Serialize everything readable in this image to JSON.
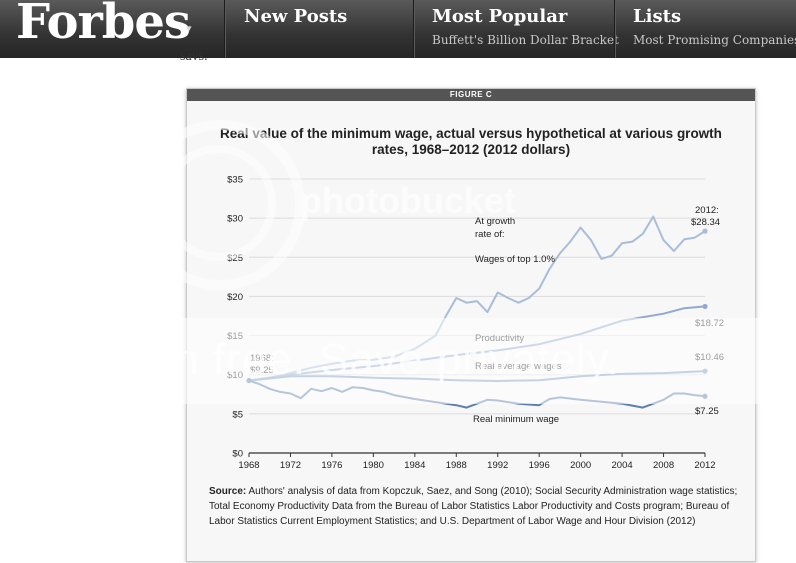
{
  "header": {
    "logo": "Forbes",
    "logo_arrow": "▾",
    "nav": [
      {
        "title": "New Posts",
        "subtitle": ""
      },
      {
        "title": "Most Popular",
        "subtitle": "Buffett's Billion Dollar Bracket"
      },
      {
        "title": "Lists",
        "subtitle": "Most Promising Companies"
      }
    ]
  },
  "article": {
    "cut_text": "says."
  },
  "watermark": {
    "brand": "photobucket",
    "band_text": "Join free. Save privately."
  },
  "figure": {
    "label": "FIGURE C",
    "title": "Real value of the minimum wage, actual versus hypothetical at various growth rates, 1968–2012 (2012 dollars)",
    "source_label": "Source:",
    "source_text": " Authors' analysis of data from Kopczuk, Saez, and Song (2010); Social Security Administration wage statistics; Total Economy Productivity Data from the Bureau of Labor Statistics Labor Productivity and Costs program; Bureau of Labor Statistics Current Employment Statistics; and U.S. Department of Labor Wage and Hour Division (2012)"
  },
  "chart_data": {
    "type": "line",
    "title": "Real value of the minimum wage, actual versus hypothetical at various growth rates, 1968–2012 (2012 dollars)",
    "xlabel": "",
    "ylabel": "",
    "xlim": [
      1968,
      2012
    ],
    "ylim": [
      0,
      35
    ],
    "x_ticks": [
      "1968",
      "1972",
      "1976",
      "1980",
      "1984",
      "1988",
      "1992",
      "1996",
      "2000",
      "2004",
      "2008",
      "2012"
    ],
    "y_ticks": [
      "$0",
      "$5",
      "$10",
      "$15",
      "$20",
      "$25",
      "$30",
      "$35"
    ],
    "grid": true,
    "legend": "none",
    "annotations": [
      "At growth",
      "rate of:",
      "1968:",
      "$9.25",
      "2012:",
      "$28.34",
      "$18.72",
      "$10.46",
      "$7.25"
    ],
    "series": [
      {
        "name": "Wages of top 1.0%",
        "color": "#a9bdd9",
        "x": [
          1968,
          1970,
          1972,
          1974,
          1976,
          1978,
          1980,
          1982,
          1984,
          1986,
          1987,
          1988,
          1989,
          1990,
          1991,
          1992,
          1993,
          1994,
          1995,
          1996,
          1997,
          1998,
          1999,
          2000,
          2001,
          2002,
          2003,
          2004,
          2005,
          2006,
          2007,
          2008,
          2009,
          2010,
          2011,
          2012
        ],
        "values": [
          9.25,
          9.6,
          10.2,
          10.9,
          11.4,
          11.8,
          11.9,
          12.3,
          13.3,
          15.0,
          17.5,
          19.8,
          19.2,
          19.4,
          18.0,
          20.5,
          19.8,
          19.2,
          19.8,
          21.0,
          23.5,
          25.5,
          27.0,
          28.8,
          27.2,
          24.8,
          25.2,
          26.8,
          27.0,
          28.0,
          30.2,
          27.2,
          25.8,
          27.3,
          27.5,
          28.34
        ]
      },
      {
        "name": "Productivity",
        "color": "#90a9cc",
        "x": [
          1968,
          1972,
          1976,
          1980,
          1984,
          1988,
          1992,
          1996,
          2000,
          2004,
          2008,
          2010,
          2012
        ],
        "values": [
          9.25,
          10.0,
          10.6,
          11.1,
          11.8,
          12.5,
          13.1,
          13.9,
          15.2,
          16.9,
          17.8,
          18.5,
          18.72
        ]
      },
      {
        "name": "Real average wages",
        "color": "#7f9cc4",
        "x": [
          1968,
          1972,
          1976,
          1980,
          1984,
          1988,
          1992,
          1996,
          2000,
          2004,
          2008,
          2012
        ],
        "values": [
          9.25,
          9.8,
          9.8,
          9.6,
          9.5,
          9.3,
          9.2,
          9.3,
          9.8,
          10.1,
          10.2,
          10.46
        ]
      },
      {
        "name": "Real minimum wage",
        "color": "#5e7fad",
        "x": [
          1968,
          1969,
          1970,
          1971,
          1972,
          1973,
          1974,
          1975,
          1976,
          1977,
          1978,
          1979,
          1980,
          1981,
          1982,
          1984,
          1986,
          1988,
          1989,
          1990,
          1991,
          1992,
          1994,
          1996,
          1997,
          1998,
          2000,
          2004,
          2006,
          2007,
          2008,
          2009,
          2010,
          2011,
          2012
        ],
        "values": [
          9.25,
          8.8,
          8.2,
          7.8,
          7.6,
          7.0,
          8.2,
          7.9,
          8.3,
          7.8,
          8.4,
          8.3,
          8.0,
          7.8,
          7.4,
          6.9,
          6.5,
          6.1,
          5.8,
          6.3,
          6.8,
          6.7,
          6.3,
          6.1,
          6.9,
          7.1,
          6.8,
          6.3,
          5.8,
          6.3,
          6.8,
          7.6,
          7.6,
          7.4,
          7.25
        ]
      }
    ]
  }
}
